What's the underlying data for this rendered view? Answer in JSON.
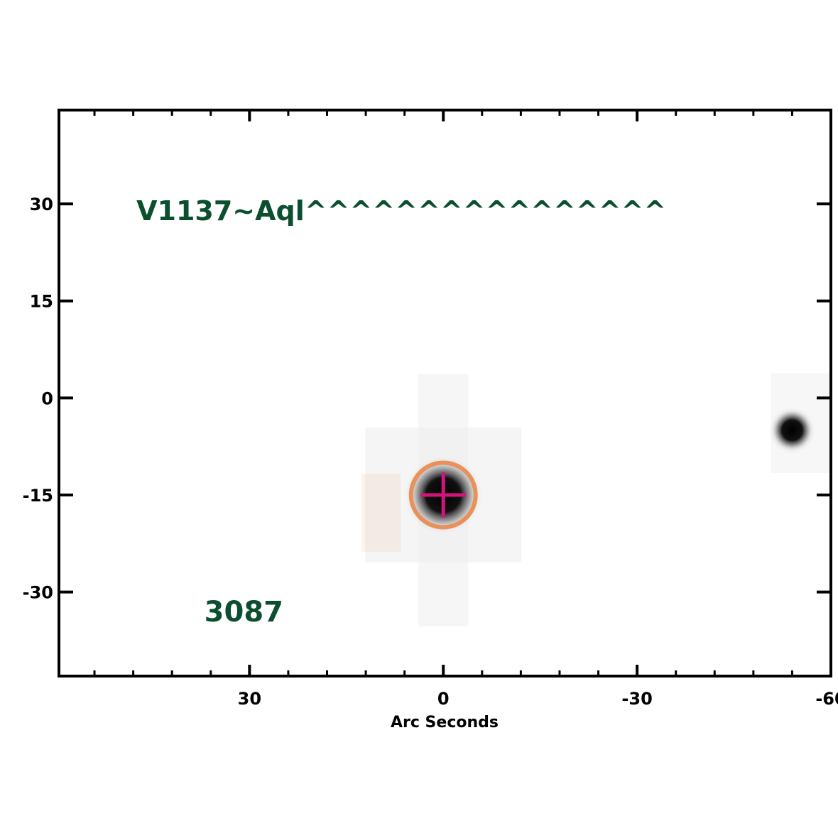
{
  "chart_data": {
    "type": "scatter",
    "title": "",
    "xlabel": "Arc Seconds",
    "ylabel": "",
    "xlim": [
      59.5,
      -60
    ],
    "ylim": [
      -43,
      44.5
    ],
    "x_ticks": [
      30,
      0,
      -30,
      -60
    ],
    "x_tick_labels": [
      "30",
      "0",
      "-30",
      "-60"
    ],
    "y_ticks": [
      30,
      15,
      0,
      -15,
      -30
    ],
    "y_tick_labels": [
      "30",
      "15",
      "0",
      "-15",
      "-30"
    ],
    "x_minor_step": 6,
    "y_minor_step": 15,
    "grid": false,
    "background": "grayscale sky image",
    "sources": [
      {
        "x": 0,
        "y": -15,
        "role": "target"
      },
      {
        "x": -54,
        "y": -5,
        "role": "field-star"
      }
    ],
    "marker": {
      "type": "circle-with-cross",
      "x": 0,
      "y": -15,
      "radius_arcsec": 5
    },
    "annotations": [
      {
        "text": "V1137~Aql^^^^^^^^^^^^^^^^",
        "x": 47.5,
        "y": 29
      },
      {
        "text": "3087",
        "x": 37,
        "y": -33
      }
    ]
  },
  "colors": {
    "axis": "#000000",
    "annotation_text": "#0b4f2f",
    "circle": "#e8915a",
    "cross": "#d4147a",
    "source": "#000000",
    "halo": "#e8a07c"
  }
}
